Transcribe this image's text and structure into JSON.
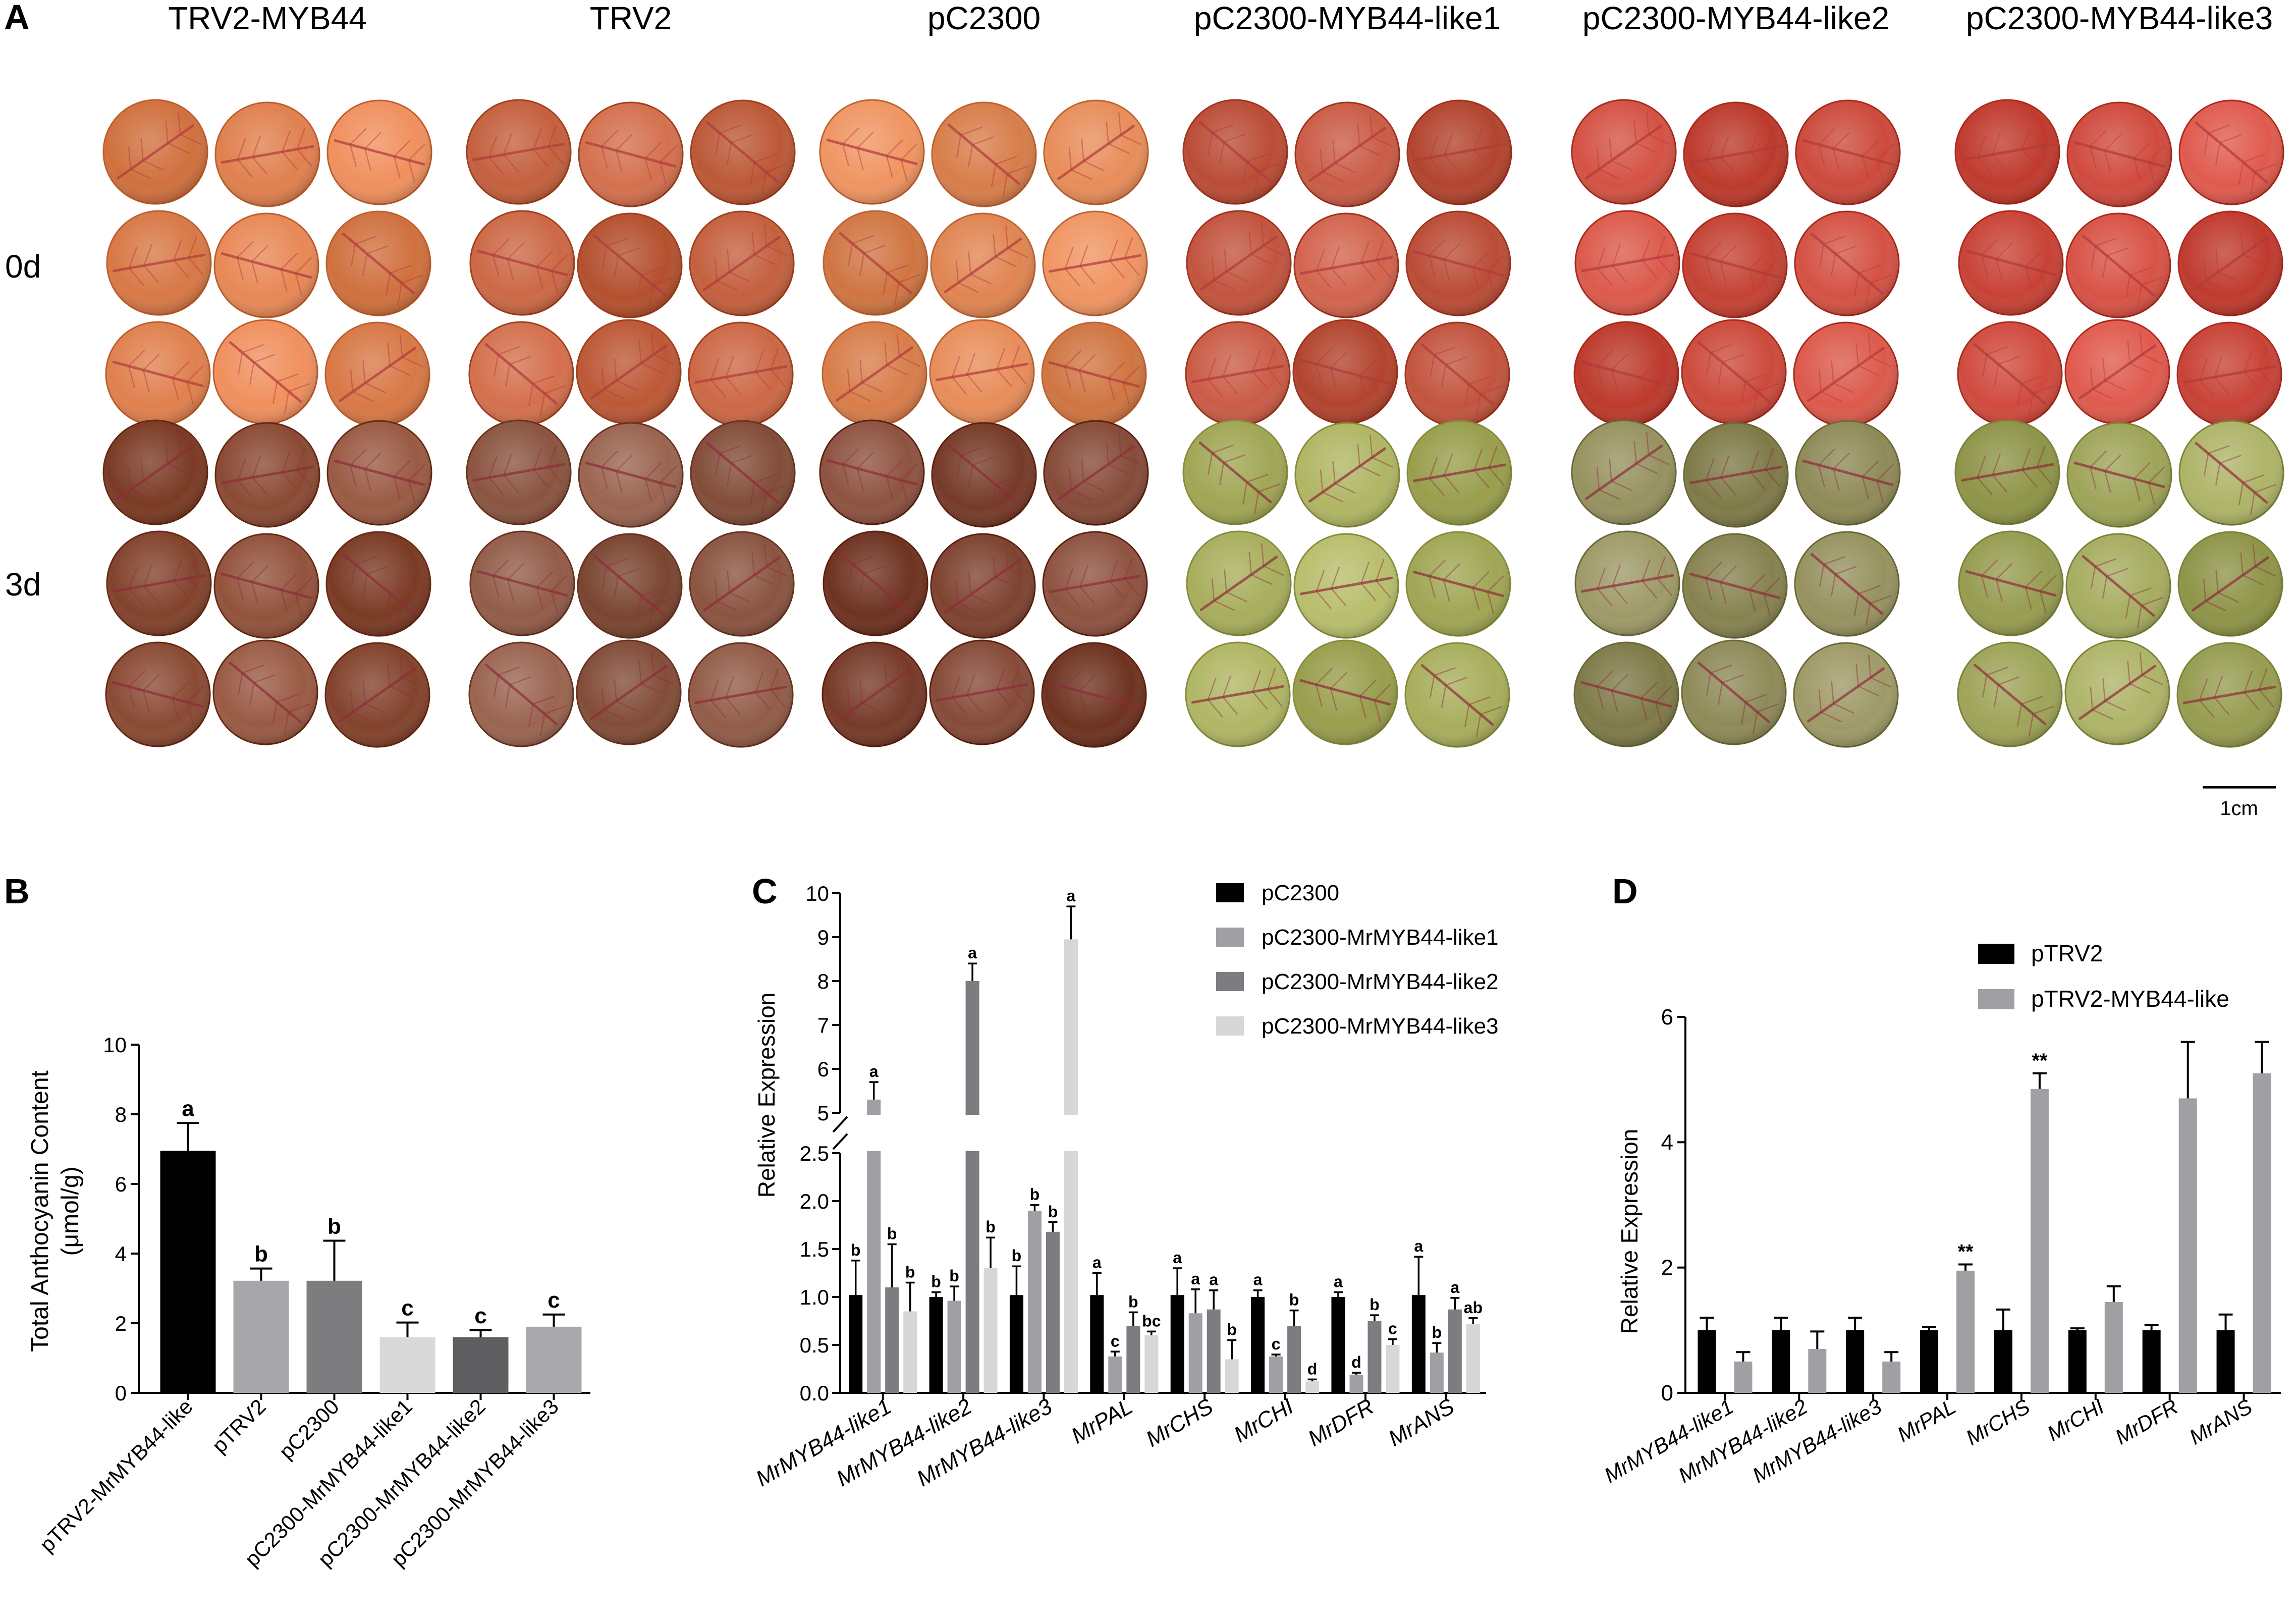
{
  "panel_a": {
    "label": "A",
    "columns": [
      "TRV2-MYB44",
      "TRV2",
      "pC2300",
      "pC2300-MYB44-like1",
      "pC2300-MYB44-like2",
      "pC2300-MYB44-like3"
    ],
    "rows": [
      "0d",
      "3d"
    ],
    "scale_bar": "1cm",
    "colors_0d": [
      "#e0804e",
      "#c4603e",
      "#e08552",
      "#c2543e",
      "#cc4a3c",
      "#d04a3e"
    ],
    "colors_3d": [
      "#8a4a34",
      "#8a5440",
      "#7e4230",
      "#a8ae5c",
      "#8e8a58",
      "#9ea458"
    ]
  },
  "chart_data": [
    {
      "panel": "B",
      "type": "bar",
      "title": "",
      "xlabel": "",
      "ylabel": "Total Anthocyanin Content (μmol/g)",
      "ylabel_line1": "Total Anthocyanin Content",
      "ylabel_line2": "(μmol/g)",
      "ylim": [
        0,
        10
      ],
      "yticks": [
        0,
        2,
        4,
        6,
        8,
        10
      ],
      "categories": [
        "pTRV2-MrMYB44-like",
        "pTRV2",
        "pC2300",
        "pC2300-MrMYB44-like1",
        "pC2300-MrMYB44-like2",
        "pC2300-MrMYB44-like3"
      ],
      "values": [
        6.95,
        3.22,
        3.22,
        1.6,
        1.6,
        1.9
      ],
      "errors": [
        0.8,
        0.35,
        1.15,
        0.42,
        0.2,
        0.35
      ],
      "letters": [
        "a",
        "b",
        "b",
        "c",
        "c",
        "c"
      ],
      "colors": [
        "#000000",
        "#a6a6ab",
        "#7d7d80",
        "#d9d9d9",
        "#5e5e61",
        "#a8a8ad"
      ]
    },
    {
      "panel": "C",
      "type": "bar",
      "title": "",
      "xlabel": "",
      "ylabel": "Relative Expression",
      "y_axis_break": true,
      "lower_ylim": [
        0,
        2.5
      ],
      "lower_yticks": [
        "0.0",
        "0.5",
        "1.0",
        "1.5",
        "2.0",
        "2.5"
      ],
      "upper_ylim": [
        5,
        10
      ],
      "upper_yticks": [
        "5",
        "6",
        "7",
        "8",
        "9",
        "10"
      ],
      "categories": [
        "MrMYB44-like1",
        "MrMYB44-like2",
        "MrMYB44-like3",
        "MrPAL",
        "MrCHS",
        "MrCHI",
        "MrDFR",
        "MrANS"
      ],
      "legend_position": "top-right",
      "series": [
        {
          "name": "pC2300",
          "color": "#000000",
          "values": [
            1.02,
            1.0,
            1.02,
            1.02,
            1.02,
            1.0,
            1.0,
            1.02
          ],
          "errors": [
            0.36,
            0.05,
            0.3,
            0.23,
            0.28,
            0.07,
            0.05,
            0.4
          ],
          "letters": [
            "b",
            "b",
            "b",
            "a",
            "a",
            "a",
            "a",
            "a"
          ]
        },
        {
          "name": "pC2300-MrMYB44-like1",
          "color": "#a0a0a4",
          "values": [
            5.3,
            0.96,
            1.9,
            0.38,
            0.83,
            0.38,
            0.19,
            0.42
          ],
          "errors": [
            0.4,
            0.15,
            0.06,
            0.05,
            0.25,
            0.02,
            0.02,
            0.1
          ],
          "letters": [
            "a",
            "b",
            "b",
            "c",
            "a",
            "c",
            "d",
            "b"
          ]
        },
        {
          "name": "pC2300-MrMYB44-like2",
          "color": "#7d7d81",
          "values": [
            1.1,
            8.0,
            1.68,
            0.7,
            0.87,
            0.7,
            0.75,
            0.87
          ],
          "errors": [
            0.45,
            0.4,
            0.1,
            0.14,
            0.2,
            0.16,
            0.06,
            0.12
          ],
          "letters": [
            "b",
            "a",
            "b",
            "b",
            "a",
            "b",
            "b",
            "a"
          ]
        },
        {
          "name": "pC2300-MrMYB44-like3",
          "color": "#d7d7d7",
          "values": [
            0.85,
            1.3,
            8.95,
            0.6,
            0.35,
            0.12,
            0.5,
            0.72
          ],
          "errors": [
            0.3,
            0.32,
            0.75,
            0.04,
            0.2,
            0.02,
            0.06,
            0.06
          ],
          "letters": [
            "b",
            "b",
            "a",
            "bc",
            "b",
            "d",
            "c",
            "ab"
          ]
        }
      ]
    },
    {
      "panel": "D",
      "type": "bar",
      "title": "",
      "xlabel": "",
      "ylabel": "Relative Expression",
      "ylim": [
        0,
        6
      ],
      "yticks": [
        0,
        2,
        4,
        6
      ],
      "categories": [
        "MrMYB44-like1",
        "MrMYB44-like2",
        "MrMYB44-like3",
        "MrPAL",
        "MrCHS",
        "MrCHI",
        "MrDFR",
        "MrANS"
      ],
      "legend_position": "top-right",
      "series": [
        {
          "name": "pTRV2",
          "color": "#000000",
          "values": [
            1.0,
            1.0,
            1.0,
            1.0,
            1.0,
            1.0,
            1.0,
            1.0
          ],
          "errors": [
            0.2,
            0.2,
            0.2,
            0.05,
            0.33,
            0.03,
            0.08,
            0.25
          ]
        },
        {
          "name": "pTRV2-MYB44-like",
          "color": "#a0a0a4",
          "values": [
            0.5,
            0.7,
            0.5,
            1.95,
            4.85,
            1.45,
            4.7,
            5.1
          ],
          "errors": [
            0.15,
            0.28,
            0.15,
            0.1,
            0.25,
            0.25,
            0.9,
            0.5
          ]
        }
      ],
      "annotations": [
        {
          "category": "MrPAL",
          "text": "**"
        },
        {
          "category": "MrCHS",
          "text": "**"
        }
      ]
    }
  ]
}
